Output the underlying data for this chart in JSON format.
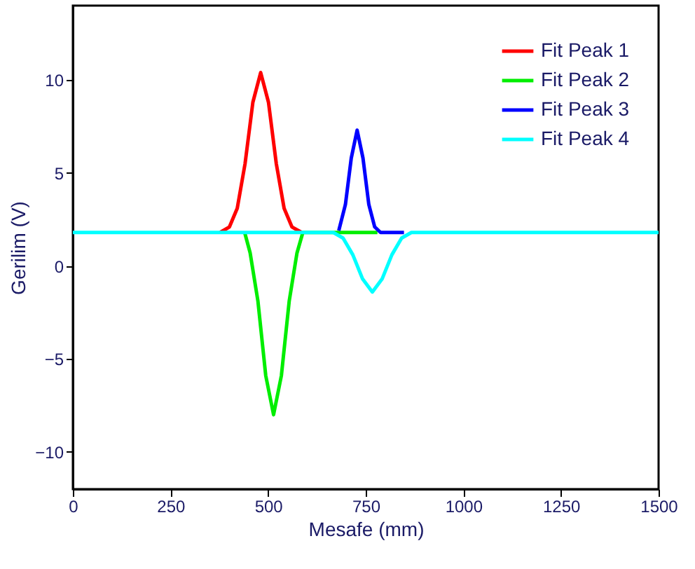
{
  "chart_data": {
    "type": "line",
    "xlabel": "Mesafe (mm)",
    "ylabel": "Gerilim (V)",
    "xlim": [
      0,
      1500
    ],
    "xticks": [
      0,
      250,
      500,
      750,
      1000,
      1250,
      1500
    ],
    "ylim": [
      -12,
      14
    ],
    "yticks": [
      -10,
      -5,
      0,
      5,
      10
    ],
    "grid": false,
    "legend": "top right",
    "marker": "none",
    "line_style": "solid",
    "series": [
      {
        "name": "Fit Peak 1",
        "color": "#ff0000",
        "x": [
          377,
          401,
          421,
          441,
          461,
          481,
          501,
          521,
          541,
          561,
          586
        ],
        "values": [
          1.8,
          2.1,
          3.1,
          5.5,
          8.8,
          10.4,
          8.8,
          5.5,
          3.1,
          2.1,
          1.8
        ]
      },
      {
        "name": "Fit Peak 2",
        "color": "#00ee00",
        "x": [
          440,
          454,
          474,
          494,
          514,
          534,
          554,
          574,
          589,
          780
        ],
        "values": [
          1.8,
          0.7,
          -1.9,
          -5.9,
          -8.0,
          -5.9,
          -1.9,
          0.7,
          1.8,
          1.8
        ]
      },
      {
        "name": "Fit Peak 3",
        "color": "#0000ff",
        "x": [
          681,
          698,
          713,
          728,
          743,
          758,
          773,
          788,
          848
        ],
        "values": [
          1.9,
          3.3,
          5.8,
          7.3,
          5.8,
          3.3,
          2.1,
          1.8,
          1.8
        ]
      },
      {
        "name": "Fit Peak 4",
        "color": "#00ffff",
        "x": [
          0,
          667,
          692,
          717,
          742,
          767,
          792,
          817,
          842,
          867,
          1500
        ],
        "values": [
          1.8,
          1.8,
          1.5,
          0.6,
          -0.7,
          -1.4,
          -0.7,
          0.6,
          1.5,
          1.8,
          1.8
        ]
      }
    ]
  }
}
